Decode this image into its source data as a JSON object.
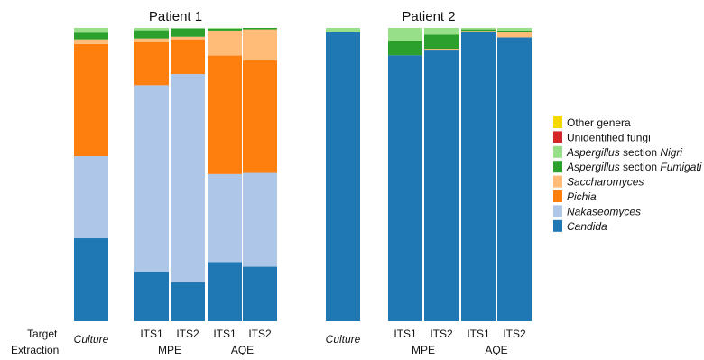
{
  "row_labels": {
    "target": "Target",
    "extraction": "Extraction"
  },
  "colors": {
    "Other genera": "#f5d800",
    "Unidentified fungi": "#d62728",
    "Aspergillus section Nigri": "#98df8a",
    "Aspergillus section Fumigati": "#2ca02c",
    "Saccharomyces": "#ffbb78",
    "Pichia": "#ff7f0e",
    "Nakaseomyces": "#aec7e8",
    "Candida": "#1f77b4"
  },
  "legend": [
    {
      "key": "Other genera",
      "parts": [
        {
          "t": "Other genera",
          "i": false
        }
      ]
    },
    {
      "key": "Unidentified fungi",
      "parts": [
        {
          "t": "Unidentified fungi",
          "i": false
        }
      ]
    },
    {
      "key": "Aspergillus section Nigri",
      "parts": [
        {
          "t": "Aspergillus",
          "i": true
        },
        {
          "t": " section ",
          "i": false
        },
        {
          "t": "Nigri",
          "i": true
        }
      ]
    },
    {
      "key": "Aspergillus section Fumigati",
      "parts": [
        {
          "t": "Aspergillus",
          "i": true
        },
        {
          "t": " section ",
          "i": false
        },
        {
          "t": "Fumigati",
          "i": true
        }
      ]
    },
    {
      "key": "Saccharomyces",
      "parts": [
        {
          "t": "Saccharomyces",
          "i": true
        }
      ]
    },
    {
      "key": "Pichia",
      "parts": [
        {
          "t": "Pichia",
          "i": true
        }
      ]
    },
    {
      "key": "Nakaseomyces",
      "parts": [
        {
          "t": "Nakaseomyces",
          "i": true
        }
      ]
    },
    {
      "key": "Candida",
      "parts": [
        {
          "t": "Candida",
          "i": true
        }
      ]
    }
  ],
  "chart_data": [
    {
      "type": "bar",
      "stacked": true,
      "normalized": true,
      "title": "Patient 1",
      "categories": [
        "Culture",
        "MPE ITS1",
        "MPE ITS2",
        "AQE ITS1",
        "AQE ITS2"
      ],
      "target_labels": [
        "",
        "ITS1",
        "ITS2",
        "ITS1",
        "ITS2"
      ],
      "extraction_groups": [
        {
          "label": "Culture",
          "italic": true,
          "bars": [
            0
          ]
        },
        {
          "label": "MPE",
          "italic": false,
          "bars": [
            1,
            2
          ]
        },
        {
          "label": "AQE",
          "italic": false,
          "bars": [
            3,
            4
          ]
        }
      ],
      "series": [
        {
          "name": "Candida",
          "values": [
            28.3,
            16.8,
            13.4,
            20.2,
            18.6
          ]
        },
        {
          "name": "Nakaseomyces",
          "values": [
            28.0,
            63.7,
            70.9,
            30.0,
            32.0
          ]
        },
        {
          "name": "Pichia",
          "values": [
            38.2,
            14.9,
            11.8,
            40.4,
            38.4
          ]
        },
        {
          "name": "Saccharomyces",
          "values": [
            1.6,
            1.0,
            0.9,
            8.5,
            10.5
          ]
        },
        {
          "name": "Aspergillus section Fumigati",
          "values": [
            2.3,
            2.8,
            2.8,
            0.6,
            0.5
          ]
        },
        {
          "name": "Aspergillus section Nigri",
          "values": [
            1.6,
            0.8,
            0.2,
            0.3,
            0.0
          ]
        },
        {
          "name": "Unidentified fungi",
          "values": [
            0.0,
            0.0,
            0.0,
            0.0,
            0.0
          ]
        },
        {
          "name": "Other genera",
          "values": [
            0.0,
            0.0,
            0.0,
            0.0,
            0.0
          ]
        }
      ]
    },
    {
      "type": "bar",
      "stacked": true,
      "normalized": true,
      "title": "Patient 2",
      "categories": [
        "Culture",
        "MPE ITS1",
        "MPE ITS2",
        "AQE ITS1",
        "AQE ITS2"
      ],
      "target_labels": [
        "",
        "ITS1",
        "ITS2",
        "ITS1",
        "ITS2"
      ],
      "extraction_groups": [
        {
          "label": "Culture",
          "italic": true,
          "bars": [
            0
          ]
        },
        {
          "label": "MPE",
          "italic": false,
          "bars": [
            1,
            2
          ]
        },
        {
          "label": "AQE",
          "italic": false,
          "bars": [
            3,
            4
          ]
        }
      ],
      "series": [
        {
          "name": "Candida",
          "values": [
            98.6,
            90.7,
            92.6,
            98.5,
            96.8
          ]
        },
        {
          "name": "Nakaseomyces",
          "values": [
            0.0,
            0.0,
            0.0,
            0.0,
            0.0
          ]
        },
        {
          "name": "Pichia",
          "values": [
            0.0,
            0.0,
            0.0,
            0.0,
            0.0
          ]
        },
        {
          "name": "Saccharomyces",
          "values": [
            0.0,
            0.0,
            0.3,
            0.5,
            1.8
          ]
        },
        {
          "name": "Aspergillus section Fumigati",
          "values": [
            0.0,
            5.0,
            4.8,
            0.5,
            0.5
          ]
        },
        {
          "name": "Aspergillus section Nigri",
          "values": [
            1.4,
            4.3,
            2.3,
            0.5,
            0.9
          ]
        },
        {
          "name": "Unidentified fungi",
          "values": [
            0.0,
            0.0,
            0.0,
            0.0,
            0.0
          ]
        },
        {
          "name": "Other genera",
          "values": [
            0.0,
            0.0,
            0.0,
            0.0,
            0.0
          ]
        }
      ]
    }
  ]
}
